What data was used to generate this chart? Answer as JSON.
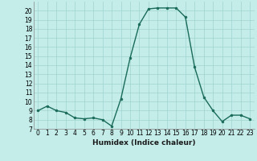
{
  "x": [
    0,
    1,
    2,
    3,
    4,
    5,
    6,
    7,
    8,
    9,
    10,
    11,
    12,
    13,
    14,
    15,
    16,
    17,
    18,
    19,
    20,
    21,
    22,
    23
  ],
  "y": [
    9,
    9.5,
    9,
    8.8,
    8.2,
    8.1,
    8.2,
    8.0,
    7.3,
    10.3,
    14.8,
    18.5,
    20.2,
    20.3,
    20.3,
    20.3,
    19.3,
    13.8,
    10.5,
    9.0,
    7.8,
    8.5,
    8.5,
    8.1
  ],
  "line_color": "#1a6b5a",
  "marker": "o",
  "markersize": 2.0,
  "linewidth": 1.0,
  "xlabel": "Humidex (Indice chaleur)",
  "ylim": [
    7,
    21
  ],
  "xlim": [
    -0.5,
    23.5
  ],
  "yticks": [
    7,
    8,
    9,
    10,
    11,
    12,
    13,
    14,
    15,
    16,
    17,
    18,
    19,
    20
  ],
  "xticks": [
    0,
    1,
    2,
    3,
    4,
    5,
    6,
    7,
    8,
    9,
    10,
    11,
    12,
    13,
    14,
    15,
    16,
    17,
    18,
    19,
    20,
    21,
    22,
    23
  ],
  "xtick_labels": [
    "0",
    "1",
    "2",
    "3",
    "4",
    "5",
    "6",
    "7",
    "8",
    "9",
    "10",
    "11",
    "12",
    "13",
    "14",
    "15",
    "16",
    "17",
    "18",
    "19",
    "20",
    "21",
    "22",
    "23"
  ],
  "bg_color": "#c4edea",
  "grid_color": "#a0d4d0",
  "tick_fontsize": 5.5,
  "xlabel_fontsize": 6.5
}
